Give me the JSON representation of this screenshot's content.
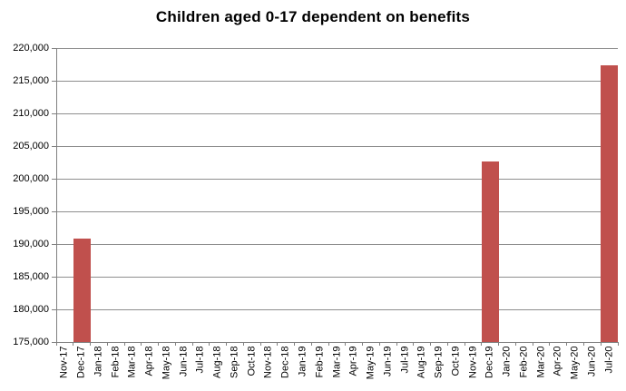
{
  "title": "Children aged 0-17 dependent on benefits",
  "chart_data": {
    "type": "bar",
    "title": "Children aged 0-17 dependent on benefits",
    "categories": [
      "Nov-17",
      "Dec-17",
      "Jan-18",
      "Feb-18",
      "Mar-18",
      "Apr-18",
      "May-18",
      "Jun-18",
      "Jul-18",
      "Aug-18",
      "Sep-18",
      "Oct-18",
      "Nov-18",
      "Dec-18",
      "Jan-19",
      "Feb-19",
      "Mar-19",
      "Apr-19",
      "May-19",
      "Jun-19",
      "Jul-19",
      "Aug-19",
      "Sep-19",
      "Oct-19",
      "Nov-19",
      "Dec-19",
      "Jan-20",
      "Feb-20",
      "Mar-20",
      "Apr-20",
      "May-20",
      "Jun-20",
      "Jul-20"
    ],
    "values": [
      null,
      190900,
      null,
      null,
      null,
      null,
      null,
      null,
      null,
      null,
      null,
      null,
      null,
      null,
      null,
      null,
      null,
      null,
      null,
      null,
      null,
      null,
      null,
      null,
      null,
      202700,
      null,
      null,
      null,
      null,
      null,
      null,
      217400
    ],
    "xlabel": "",
    "ylabel": "",
    "ylim": [
      175000,
      220000
    ],
    "ytick_step": 5000,
    "ytick_labels": [
      "175,000",
      "180,000",
      "185,000",
      "190,000",
      "195,000",
      "200,000",
      "205,000",
      "210,000",
      "215,000",
      "220,000"
    ],
    "grid": true,
    "legend": false,
    "colors": {
      "bar": "#C0504D",
      "gridline": "#8E8E8E",
      "axis": "#808080",
      "text": "#000000",
      "background": "#FFFFFF"
    }
  }
}
